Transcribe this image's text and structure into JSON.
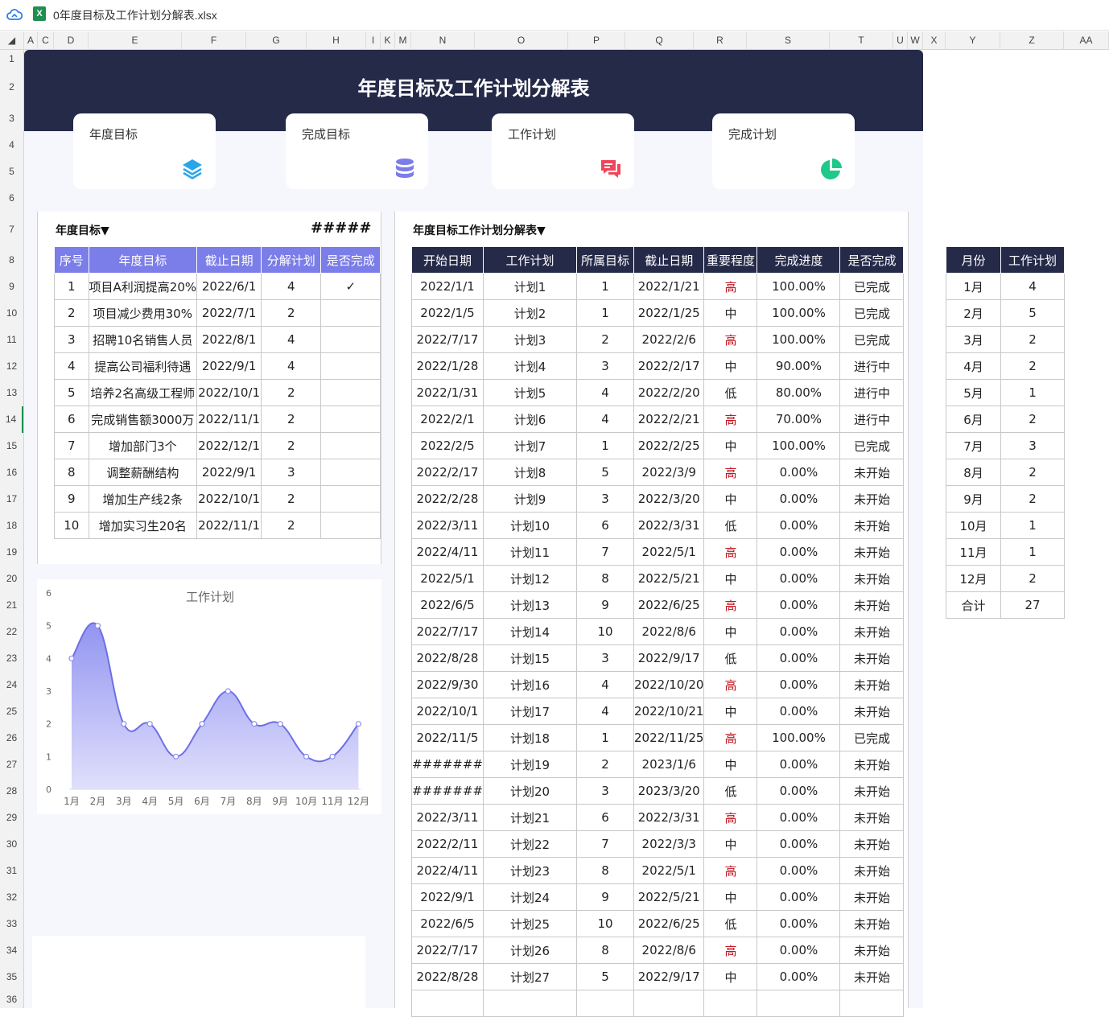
{
  "window": {
    "filename": "0年度目标及工作计划分解表.xlsx"
  },
  "columns": [
    "A",
    "C",
    "D",
    "E",
    "F",
    "G",
    "H",
    "I",
    "K",
    "M",
    "N",
    "O",
    "P",
    "Q",
    "R",
    "S",
    "T",
    "U",
    "W",
    "X",
    "Y",
    "Z",
    "AA"
  ],
  "rows": [
    "1",
    "2",
    "3",
    "4",
    "5",
    "6",
    "7",
    "8",
    "9",
    "10",
    "11",
    "12",
    "13",
    "14",
    "15",
    "16",
    "17",
    "18",
    "19",
    "20",
    "21",
    "22",
    "23",
    "24",
    "25",
    "26",
    "27",
    "28",
    "29",
    "30",
    "31",
    "32",
    "33",
    "34",
    "35",
    "36"
  ],
  "banner": {
    "title": "年度目标及工作计划分解表"
  },
  "cards": [
    {
      "label": "年度目标",
      "icon": "layers-icon",
      "color": "#2aa6e8"
    },
    {
      "label": "完成目标",
      "icon": "database-icon",
      "color": "#7b7de8"
    },
    {
      "label": "工作计划",
      "icon": "chat-icon",
      "color": "#f0455a"
    },
    {
      "label": "完成计划",
      "icon": "pie-icon",
      "color": "#1fc98a"
    }
  ],
  "goals": {
    "dropdown": "年度目标▼",
    "overflow": "#####",
    "headers": [
      "序号",
      "年度目标",
      "截止日期",
      "分解计划",
      "是否完成"
    ],
    "rows": [
      [
        "1",
        "项目A利润提高20%",
        "2022/6/1",
        "4",
        "✓"
      ],
      [
        "2",
        "项目减少费用30%",
        "2022/7/1",
        "2",
        ""
      ],
      [
        "3",
        "招聘10名销售人员",
        "2022/8/1",
        "4",
        ""
      ],
      [
        "4",
        "提高公司福利待遇",
        "2022/9/1",
        "4",
        ""
      ],
      [
        "5",
        "培养2名高级工程师",
        "2022/10/1",
        "2",
        ""
      ],
      [
        "6",
        "完成销售额3000万",
        "2022/11/1",
        "2",
        ""
      ],
      [
        "7",
        "增加部门3个",
        "2022/12/1",
        "2",
        ""
      ],
      [
        "8",
        "调整薪酬结构",
        "2022/9/1",
        "3",
        ""
      ],
      [
        "9",
        "增加生产线2条",
        "2022/10/1",
        "2",
        ""
      ],
      [
        "10",
        "增加实习生20名",
        "2022/11/1",
        "2",
        ""
      ]
    ]
  },
  "plans": {
    "dropdown": "年度目标工作计划分解表▼",
    "headers": [
      "开始日期",
      "工作计划",
      "所属目标",
      "截止日期",
      "重要程度",
      "完成进度",
      "是否完成"
    ],
    "rows": [
      [
        "2022/1/1",
        "计划1",
        "1",
        "2022/1/21",
        "高",
        "100.00%",
        "已完成"
      ],
      [
        "2022/1/5",
        "计划2",
        "1",
        "2022/1/25",
        "中",
        "100.00%",
        "已完成"
      ],
      [
        "2022/7/17",
        "计划3",
        "2",
        "2022/2/6",
        "高",
        "100.00%",
        "已完成"
      ],
      [
        "2022/1/28",
        "计划4",
        "3",
        "2022/2/17",
        "中",
        "90.00%",
        "进行中"
      ],
      [
        "2022/1/31",
        "计划5",
        "4",
        "2022/2/20",
        "低",
        "80.00%",
        "进行中"
      ],
      [
        "2022/2/1",
        "计划6",
        "4",
        "2022/2/21",
        "高",
        "70.00%",
        "进行中"
      ],
      [
        "2022/2/5",
        "计划7",
        "1",
        "2022/2/25",
        "中",
        "100.00%",
        "已完成"
      ],
      [
        "2022/2/17",
        "计划8",
        "5",
        "2022/3/9",
        "高",
        "0.00%",
        "未开始"
      ],
      [
        "2022/2/28",
        "计划9",
        "3",
        "2022/3/20",
        "中",
        "0.00%",
        "未开始"
      ],
      [
        "2022/3/11",
        "计划10",
        "6",
        "2022/3/31",
        "低",
        "0.00%",
        "未开始"
      ],
      [
        "2022/4/11",
        "计划11",
        "7",
        "2022/5/1",
        "高",
        "0.00%",
        "未开始"
      ],
      [
        "2022/5/1",
        "计划12",
        "8",
        "2022/5/21",
        "中",
        "0.00%",
        "未开始"
      ],
      [
        "2022/6/5",
        "计划13",
        "9",
        "2022/6/25",
        "高",
        "0.00%",
        "未开始"
      ],
      [
        "2022/7/17",
        "计划14",
        "10",
        "2022/8/6",
        "中",
        "0.00%",
        "未开始"
      ],
      [
        "2022/8/28",
        "计划15",
        "3",
        "2022/9/17",
        "低",
        "0.00%",
        "未开始"
      ],
      [
        "2022/9/30",
        "计划16",
        "4",
        "2022/10/20",
        "高",
        "0.00%",
        "未开始"
      ],
      [
        "2022/10/1",
        "计划17",
        "4",
        "2022/10/21",
        "中",
        "0.00%",
        "未开始"
      ],
      [
        "2022/11/5",
        "计划18",
        "1",
        "2022/11/25",
        "高",
        "100.00%",
        "已完成"
      ],
      [
        "#######",
        "计划19",
        "2",
        "2023/1/6",
        "中",
        "0.00%",
        "未开始"
      ],
      [
        "#######",
        "计划20",
        "3",
        "2023/3/20",
        "低",
        "0.00%",
        "未开始"
      ],
      [
        "2022/3/11",
        "计划21",
        "6",
        "2022/3/31",
        "高",
        "0.00%",
        "未开始"
      ],
      [
        "2022/2/11",
        "计划22",
        "7",
        "2022/3/3",
        "中",
        "0.00%",
        "未开始"
      ],
      [
        "2022/4/11",
        "计划23",
        "8",
        "2022/5/1",
        "高",
        "0.00%",
        "未开始"
      ],
      [
        "2022/9/1",
        "计划24",
        "9",
        "2022/5/21",
        "中",
        "0.00%",
        "未开始"
      ],
      [
        "2022/6/5",
        "计划25",
        "10",
        "2022/6/25",
        "低",
        "0.00%",
        "未开始"
      ],
      [
        "2022/7/17",
        "计划26",
        "8",
        "2022/8/6",
        "高",
        "0.00%",
        "未开始"
      ],
      [
        "2022/8/28",
        "计划27",
        "5",
        "2022/9/17",
        "中",
        "0.00%",
        "未开始"
      ]
    ]
  },
  "monthly": {
    "headers": [
      "月份",
      "工作计划"
    ],
    "rows": [
      [
        "1月",
        "4"
      ],
      [
        "2月",
        "5"
      ],
      [
        "3月",
        "2"
      ],
      [
        "4月",
        "2"
      ],
      [
        "5月",
        "1"
      ],
      [
        "6月",
        "2"
      ],
      [
        "7月",
        "3"
      ],
      [
        "8月",
        "2"
      ],
      [
        "9月",
        "2"
      ],
      [
        "10月",
        "1"
      ],
      [
        "11月",
        "1"
      ],
      [
        "12月",
        "2"
      ],
      [
        "合计",
        "27"
      ]
    ]
  },
  "chart_data": {
    "type": "area",
    "title": "工作计划",
    "categories": [
      "1月",
      "2月",
      "3月",
      "4月",
      "5月",
      "6月",
      "7月",
      "8月",
      "9月",
      "10月",
      "11月",
      "12月"
    ],
    "values": [
      4,
      5,
      2,
      2,
      1,
      2,
      3,
      2,
      2,
      1,
      1,
      2
    ],
    "ylim": [
      0,
      6
    ],
    "yticks": [
      "0",
      "1",
      "2",
      "3",
      "4",
      "5",
      "6"
    ],
    "color": "#7b7de8"
  }
}
